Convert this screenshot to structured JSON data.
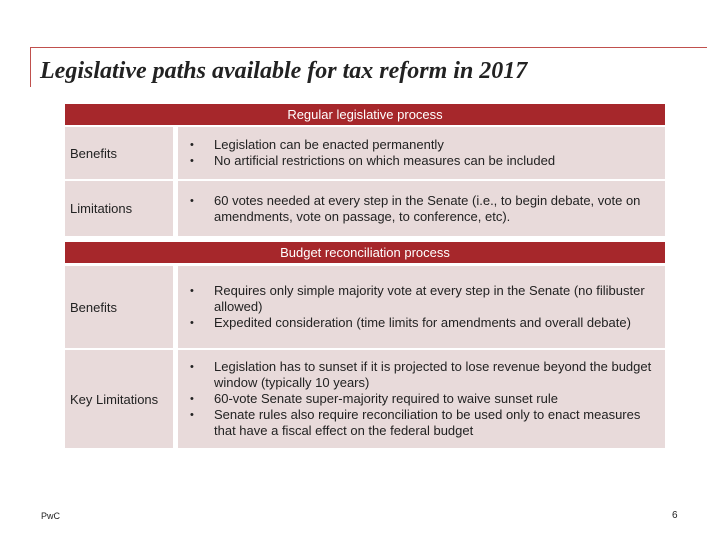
{
  "slide": {
    "title": "Legislative paths available for tax reform in 2017",
    "footer_left": "PwC",
    "page_number": "6"
  },
  "sections": [
    {
      "header": "Regular legislative process",
      "rows": [
        {
          "label": "Benefits",
          "bullets": [
            "Legislation can be enacted permanently",
            "No artificial restrictions on which measures can be included"
          ]
        },
        {
          "label": "Limitations",
          "bullets": [
            "60 votes needed at every step in the Senate (i.e., to begin debate, vote on amendments, vote on passage, to conference, etc)."
          ]
        }
      ]
    },
    {
      "header": "Budget reconciliation process",
      "rows": [
        {
          "label": "Benefits",
          "bullets": [
            "Requires only simple majority vote at every step in the Senate (no filibuster allowed)",
            "Expedited consideration (time limits for amendments and overall debate)"
          ]
        },
        {
          "label": "Key Limitations",
          "bullets": [
            "Legislation has to sunset if it is projected to lose revenue beyond the budget window (typically 10 years)",
            "60-vote Senate super-majority required to waive sunset rule",
            "Senate rules also require reconciliation to be used only to enact measures that have a fiscal effect on the federal budget"
          ]
        }
      ]
    }
  ],
  "colors": {
    "header_bg": "#a6272b",
    "cell_bg": "#e8dada",
    "accent_rule": "#c0504d"
  }
}
